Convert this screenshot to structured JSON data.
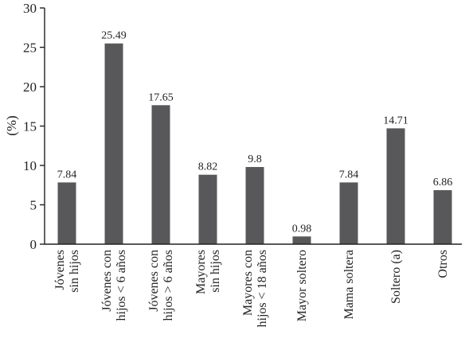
{
  "chart_data": {
    "type": "bar",
    "title": "",
    "xlabel": "",
    "ylabel": "(%)",
    "ylim": [
      0,
      30
    ],
    "yticks": [
      0,
      5,
      10,
      15,
      20,
      25,
      30
    ],
    "grid": false,
    "legend": "none",
    "bar_color": "#58585a",
    "categories": [
      [
        "Jóvenes",
        "sin hijos"
      ],
      [
        "Jóvenes con",
        "hijos < 6 años"
      ],
      [
        "Jóvenes con",
        "hijos > 6 años"
      ],
      [
        "Mayores",
        "sin hijos"
      ],
      [
        "Mayores con",
        "hijos < 18 años"
      ],
      [
        "Mayor soltero"
      ],
      [
        "Mama soltera"
      ],
      [
        "Soltero (a)"
      ],
      [
        "Otros"
      ]
    ],
    "values": [
      7.84,
      25.49,
      17.65,
      8.82,
      9.8,
      0.98,
      7.84,
      14.71,
      6.86
    ],
    "value_labels": [
      "7.84",
      "25.49",
      "17.65",
      "8.82",
      "9.8",
      "0.98",
      "7.84",
      "14.71",
      "6.86"
    ]
  }
}
